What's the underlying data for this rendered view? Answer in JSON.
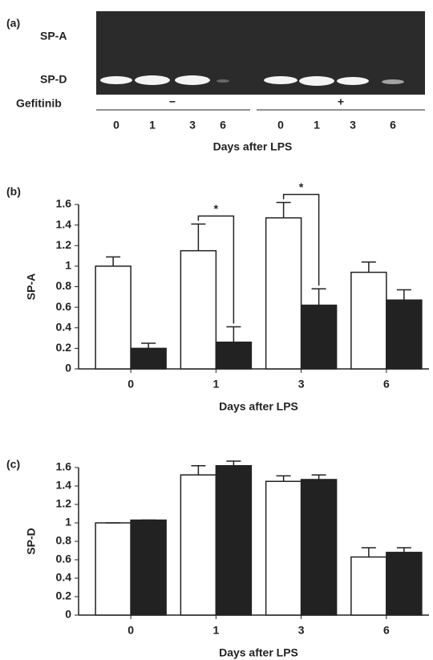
{
  "panel_a": {
    "label": "(a)",
    "rows": [
      "SP-A",
      "SP-D"
    ],
    "treatment": "Gefitinib",
    "groups": [
      "−",
      "+"
    ],
    "lanes": [
      "0",
      "1",
      "3",
      "6",
      "0",
      "1",
      "3",
      "6"
    ],
    "xlabel": "Days after LPS"
  },
  "chart_data": [
    {
      "type": "bar",
      "panel": "(b)",
      "ylabel": "SP-A",
      "xlabel": "Days after LPS",
      "categories": [
        "0",
        "1",
        "3",
        "6"
      ],
      "series": [
        {
          "color": "#ffffff",
          "values": [
            1.0,
            1.15,
            1.47,
            0.94
          ],
          "errors": [
            0.09,
            0.26,
            0.15,
            0.1
          ]
        },
        {
          "color": "#222222",
          "values": [
            0.2,
            0.26,
            0.62,
            0.67
          ],
          "errors": [
            0.05,
            0.15,
            0.16,
            0.1
          ]
        }
      ],
      "ylim": [
        0,
        1.6
      ],
      "yticks": [
        0,
        0.2,
        0.4,
        0.6,
        0.8,
        1,
        1.2,
        1.4,
        1.6
      ],
      "annotations": [
        {
          "text": "*",
          "category": "1"
        },
        {
          "text": "*",
          "category": "3"
        }
      ]
    },
    {
      "type": "bar",
      "panel": "(c)",
      "ylabel": "SP-D",
      "xlabel": "Days after LPS",
      "categories": [
        "0",
        "1",
        "3",
        "6"
      ],
      "series": [
        {
          "color": "#ffffff",
          "values": [
            1.0,
            1.52,
            1.45,
            0.63
          ],
          "errors": [
            0,
            0.1,
            0.06,
            0.1
          ]
        },
        {
          "color": "#222222",
          "values": [
            1.03,
            1.62,
            1.47,
            0.68
          ],
          "errors": [
            0,
            0.05,
            0.05,
            0.05
          ]
        }
      ],
      "ylim": [
        0,
        1.6
      ],
      "yticks": [
        0,
        0.2,
        0.4,
        0.6,
        0.8,
        1,
        1.2,
        1.4,
        1.6
      ]
    }
  ]
}
